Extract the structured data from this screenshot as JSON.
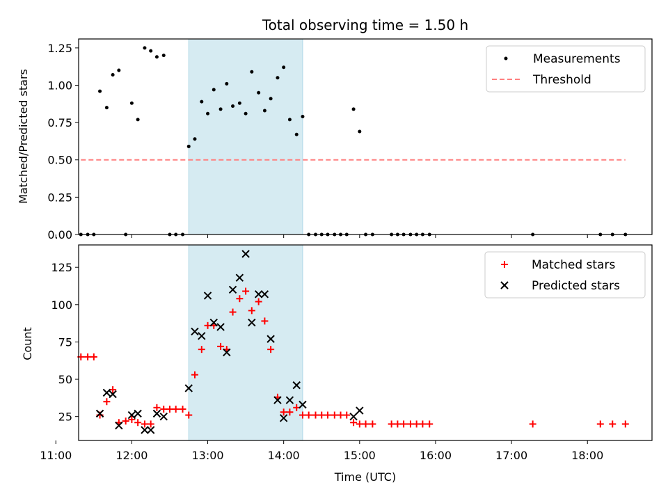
{
  "chart_data": {
    "title": "Total observing time = 1.50 h",
    "xlabel": "Time (UTC)",
    "x_unit": "hours since 00:00 UTC",
    "xlim": [
      11.3,
      18.85
    ],
    "x_ticks": [
      {
        "value": 11,
        "label": "11:00"
      },
      {
        "value": 12,
        "label": "12:00"
      },
      {
        "value": 13,
        "label": "13:00"
      },
      {
        "value": 14,
        "label": "14:00"
      },
      {
        "value": 15,
        "label": "15:00"
      },
      {
        "value": 16,
        "label": "16:00"
      },
      {
        "value": 17,
        "label": "17:00"
      },
      {
        "value": 18,
        "label": "18:00"
      }
    ],
    "observing_window": {
      "start": 12.75,
      "end": 14.25,
      "color": "#add8e6"
    },
    "panels": [
      {
        "type": "scatter",
        "ylabel": "Matched/Predicted stars",
        "ylim": [
          0,
          1.31
        ],
        "y_ticks": [
          {
            "value": 0,
            "label": "0.00"
          },
          {
            "value": 0.25,
            "label": "0.25"
          },
          {
            "value": 0.5,
            "label": "0.50"
          },
          {
            "value": 0.75,
            "label": "0.75"
          },
          {
            "value": 1.0,
            "label": "1.00"
          },
          {
            "value": 1.25,
            "label": "1.25"
          }
        ],
        "legend": {
          "placement": "top-right",
          "entries": [
            {
              "label": "Measurements",
              "marker": "dot",
              "color": "#000000"
            },
            {
              "label": "Threshold",
              "marker": "dashed-line",
              "color": "#ff8080"
            }
          ]
        },
        "threshold": {
          "value": 0.5,
          "x_start": 11.33,
          "x_end": 18.5
        },
        "series": [
          {
            "name": "Measurements",
            "color": "#000000",
            "x": [
              11.33,
              11.42,
              11.5,
              11.58,
              11.67,
              11.75,
              11.83,
              11.92,
              12.0,
              12.08,
              12.17,
              12.25,
              12.33,
              12.42,
              12.5,
              12.58,
              12.67,
              12.75,
              12.83,
              12.92,
              13.0,
              13.08,
              13.17,
              13.25,
              13.33,
              13.42,
              13.5,
              13.58,
              13.67,
              13.75,
              13.83,
              13.92,
              14.0,
              14.08,
              14.17,
              14.25,
              14.33,
              14.42,
              14.5,
              14.58,
              14.67,
              14.75,
              14.83,
              14.92,
              15.0,
              15.08,
              15.17,
              15.42,
              15.5,
              15.58,
              15.67,
              15.75,
              15.83,
              15.92,
              17.28,
              18.17,
              18.33,
              18.5
            ],
            "y": [
              0,
              0,
              0,
              0.96,
              0.85,
              1.07,
              1.1,
              0,
              0.88,
              0.77,
              1.25,
              1.23,
              1.19,
              1.2,
              0,
              0,
              0,
              0.59,
              0.64,
              0.89,
              0.81,
              0.97,
              0.84,
              1.01,
              0.86,
              0.88,
              0.81,
              1.09,
              0.95,
              0.83,
              0.91,
              1.05,
              1.12,
              0.77,
              0.67,
              0.79,
              0,
              0,
              0,
              0,
              0,
              0,
              0,
              0.84,
              0.69,
              0,
              0,
              0,
              0,
              0,
              0,
              0,
              0,
              0,
              0,
              0,
              0,
              0
            ]
          }
        ]
      },
      {
        "type": "scatter",
        "ylabel": "Count",
        "ylim": [
          9,
          140
        ],
        "y_ticks": [
          {
            "value": 25,
            "label": "25"
          },
          {
            "value": 50,
            "label": "50"
          },
          {
            "value": 75,
            "label": "75"
          },
          {
            "value": 100,
            "label": "100"
          },
          {
            "value": 125,
            "label": "125"
          }
        ],
        "legend": {
          "placement": "top-right",
          "entries": [
            {
              "label": "Matched stars",
              "marker": "plus",
              "color": "#ff0000"
            },
            {
              "label": "Predicted stars",
              "marker": "x",
              "color": "#000000"
            }
          ]
        },
        "series": [
          {
            "name": "Matched stars",
            "marker": "plus",
            "color": "#ff0000",
            "x": [
              11.33,
              11.42,
              11.5,
              11.58,
              11.67,
              11.75,
              11.83,
              11.92,
              12.0,
              12.08,
              12.17,
              12.25,
              12.33,
              12.42,
              12.5,
              12.58,
              12.67,
              12.75,
              12.83,
              12.92,
              13.0,
              13.08,
              13.17,
              13.25,
              13.33,
              13.42,
              13.5,
              13.58,
              13.67,
              13.75,
              13.83,
              13.92,
              14.0,
              14.08,
              14.17,
              14.25,
              14.33,
              14.42,
              14.5,
              14.58,
              14.67,
              14.75,
              14.83,
              14.92,
              15.0,
              15.08,
              15.17,
              15.42,
              15.5,
              15.58,
              15.67,
              15.75,
              15.83,
              15.92,
              17.28,
              18.17,
              18.33,
              18.5
            ],
            "y": [
              65,
              65,
              65,
              26,
              35,
              43,
              21,
              22,
              23,
              21,
              20,
              20,
              31,
              30,
              30,
              30,
              30,
              26,
              53,
              70,
              86,
              86,
              72,
              70,
              95,
              104,
              109,
              96,
              102,
              89,
              70,
              38,
              28,
              28,
              31,
              26,
              26,
              26,
              26,
              26,
              26,
              26,
              26,
              21,
              20,
              20,
              20,
              20,
              20,
              20,
              20,
              20,
              20,
              20,
              20,
              20,
              20,
              20
            ]
          },
          {
            "name": "Predicted stars",
            "marker": "x",
            "color": "#000000",
            "x": [
              11.58,
              11.67,
              11.75,
              11.83,
              12.0,
              12.08,
              12.17,
              12.25,
              12.33,
              12.42,
              12.75,
              12.83,
              12.92,
              13.0,
              13.08,
              13.17,
              13.25,
              13.33,
              13.42,
              13.5,
              13.58,
              13.67,
              13.75,
              13.83,
              13.92,
              14.0,
              14.08,
              14.17,
              14.25,
              14.92,
              15.0
            ],
            "y": [
              27,
              41,
              40,
              19,
              26,
              27,
              16,
              16,
              27,
              25,
              44,
              82,
              79,
              106,
              88,
              85,
              68,
              110,
              118,
              134,
              88,
              107,
              107,
              77,
              36,
              24,
              36,
              46,
              33,
              25,
              29
            ]
          }
        ]
      }
    ]
  }
}
